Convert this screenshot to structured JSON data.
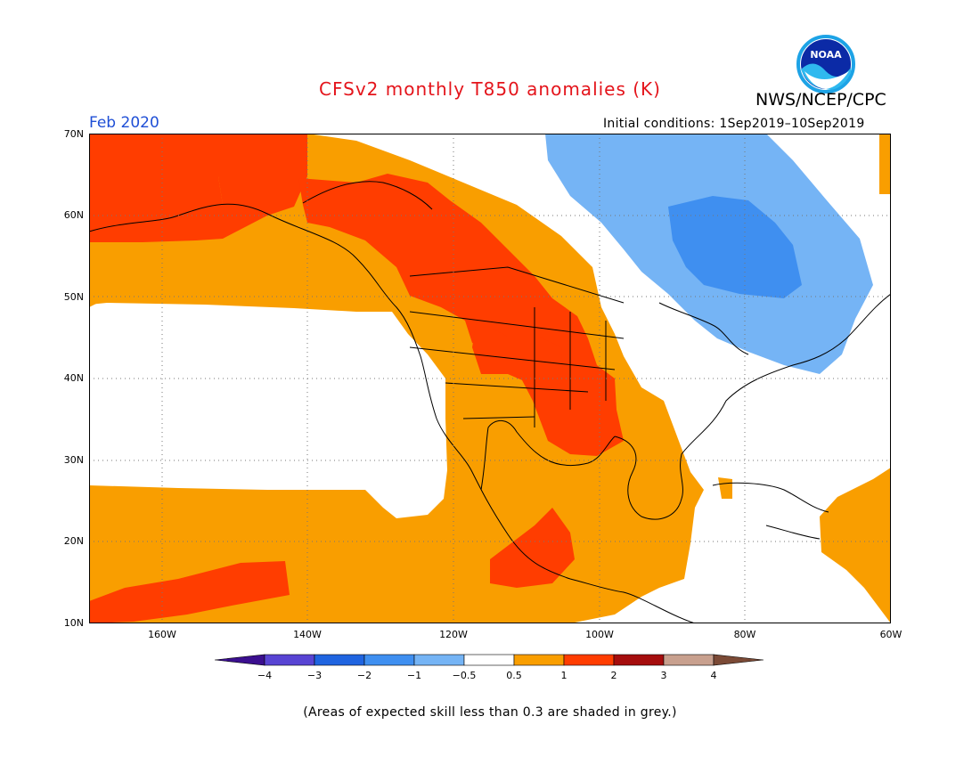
{
  "header": {
    "title": "CFSv2 monthly T850 anomalies (K)",
    "agency": "NWS/NCEP/CPC",
    "logo_text": "NOAA",
    "forecast_month": "Feb 2020",
    "initial_conditions": "Initial conditions: 1Sep2019–10Sep2019"
  },
  "map": {
    "lat_labels": [
      "70N",
      "60N",
      "50N",
      "40N",
      "30N",
      "20N",
      "10N"
    ],
    "lon_labels": [
      "160W",
      "140W",
      "120W",
      "100W",
      "80W",
      "60W"
    ],
    "lat_range": [
      10,
      70
    ],
    "lon_range": [
      -170,
      -60
    ],
    "grid_lines": true
  },
  "colorbar": {
    "labels": [
      "−4",
      "−3",
      "−2",
      "−1",
      "−0.5",
      "0.5",
      "1",
      "2",
      "3",
      "4"
    ],
    "colors": [
      "#3b0f8f",
      "#5844d3",
      "#1f64e0",
      "#3f8ff0",
      "#75b4f5",
      "#ffffff",
      "#f99e00",
      "#ff3d00",
      "#a50d0d",
      "#c8a08e",
      "#7b4a36"
    ]
  },
  "footer": {
    "skill_note": "(Areas of expected skill less than 0.3 are shaded in grey.)"
  }
}
